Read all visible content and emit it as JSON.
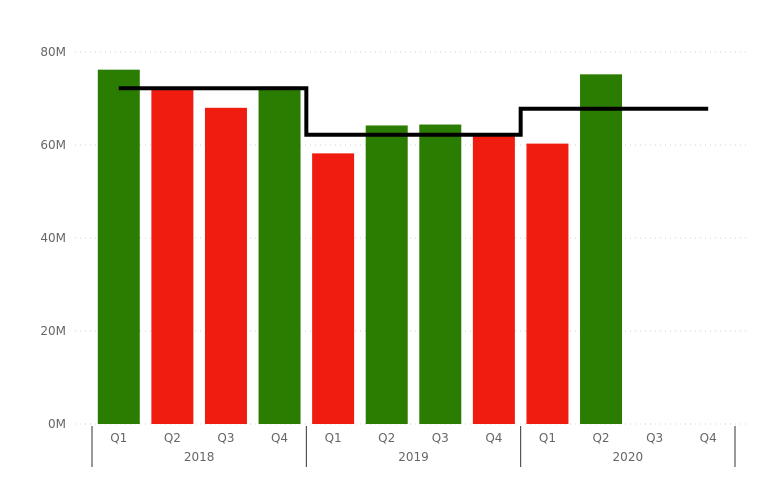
{
  "chart_data": {
    "type": "bar",
    "title": "",
    "xlabel": "",
    "ylabel": "",
    "ylim": [
      0,
      80
    ],
    "y_unit_suffix": "M",
    "y_ticks": [
      0,
      20,
      40,
      60,
      80
    ],
    "y_tick_labels": [
      "0M",
      "20M",
      "40M",
      "60M",
      "80M"
    ],
    "grid": true,
    "categories": [
      "Q1",
      "Q2",
      "Q3",
      "Q4",
      "Q1",
      "Q2",
      "Q3",
      "Q4",
      "Q1",
      "Q2",
      "Q3",
      "Q4"
    ],
    "years": [
      {
        "label": "2018",
        "span": 4
      },
      {
        "label": "2019",
        "span": 4
      },
      {
        "label": "2020",
        "span": 4
      }
    ],
    "values": [
      76.2,
      72.0,
      68.0,
      72.6,
      58.2,
      64.2,
      64.4,
      62.0,
      60.3,
      75.2,
      null,
      null
    ],
    "bar_status": [
      "up",
      "down",
      "down",
      "up",
      "down",
      "up",
      "up",
      "down",
      "down",
      "up",
      null,
      null
    ],
    "colors": {
      "up": "#2a7d00",
      "down": "#f01c0f",
      "line": "#000000"
    },
    "yearly_average": [
      {
        "year": "2018",
        "value": 72.2
      },
      {
        "year": "2019",
        "value": 62.2
      },
      {
        "year": "2020",
        "value": 67.8
      }
    ]
  }
}
